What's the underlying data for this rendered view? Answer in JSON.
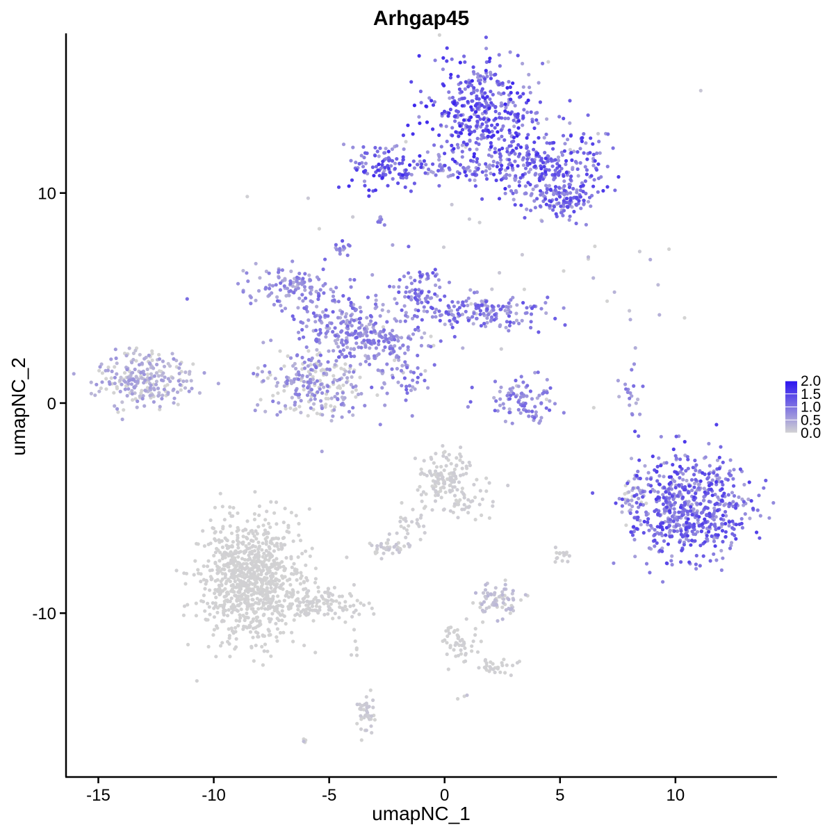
{
  "chart_data": {
    "type": "scatter",
    "title": "Arhgap45",
    "xlabel": "umapNC_1",
    "ylabel": "umapNC_2",
    "xlim": [
      -16.4,
      14.4
    ],
    "ylim": [
      -17.8,
      17.6
    ],
    "x_ticks": [
      -15,
      -10,
      -5,
      0,
      5,
      10
    ],
    "x_tick_labels": [
      "-15",
      "-10",
      "-5",
      "0",
      "5",
      "10"
    ],
    "y_ticks": [
      -10,
      0,
      10
    ],
    "y_tick_labels": [
      "-10",
      "0",
      "10"
    ],
    "grid": false,
    "legend": {
      "position": "right",
      "ticks": [
        2.0,
        1.5,
        1.0,
        0.5,
        0.0
      ],
      "tick_labels": [
        "2.0",
        "1.5",
        "1.0",
        "0.5",
        "0.0"
      ],
      "min": 0.0,
      "max": 2.0
    },
    "colors": {
      "low": "#d3d3d3",
      "high": "#2a12f0"
    },
    "clusters": [
      {
        "cx": 1.8,
        "cy": 13.8,
        "sx": 1.2,
        "sy": 1.4,
        "n": 420,
        "level": 1.2
      },
      {
        "cx": 4.6,
        "cy": 11.2,
        "sx": 1.2,
        "sy": 0.9,
        "n": 260,
        "level": 1.1
      },
      {
        "cx": 5.1,
        "cy": 9.6,
        "sx": 0.6,
        "sy": 0.5,
        "n": 90,
        "level": 1.0
      },
      {
        "cx": -2.6,
        "cy": 11.3,
        "sx": 0.8,
        "sy": 0.6,
        "n": 110,
        "level": 1.2
      },
      {
        "cx": 0.5,
        "cy": 11.1,
        "sx": 1.5,
        "sy": 0.25,
        "n": 80,
        "level": 1.0
      },
      {
        "cx": -2.8,
        "cy": 8.6,
        "sx": 0.15,
        "sy": 0.2,
        "n": 8,
        "level": 1.0
      },
      {
        "cx": -4.4,
        "cy": 7.4,
        "sx": 0.2,
        "sy": 0.2,
        "n": 14,
        "level": 0.9
      },
      {
        "cx": -6.6,
        "cy": 5.4,
        "sx": 1.1,
        "sy": 0.5,
        "n": 110,
        "level": 0.7
      },
      {
        "cx": -1.2,
        "cy": 5.4,
        "sx": 0.6,
        "sy": 0.8,
        "n": 70,
        "level": 0.9
      },
      {
        "cx": 1.5,
        "cy": 4.3,
        "sx": 1.4,
        "sy": 0.5,
        "n": 160,
        "level": 0.9
      },
      {
        "cx": -4.8,
        "cy": 3.8,
        "sx": 0.9,
        "sy": 0.8,
        "n": 130,
        "level": 0.8
      },
      {
        "cx": -3.0,
        "cy": 3.0,
        "sx": 1.2,
        "sy": 0.9,
        "n": 190,
        "level": 0.7
      },
      {
        "cx": -5.6,
        "cy": 0.8,
        "sx": 1.2,
        "sy": 0.8,
        "n": 230,
        "level": 0.6
      },
      {
        "cx": -1.8,
        "cy": 1.2,
        "sx": 0.6,
        "sy": 0.6,
        "n": 30,
        "level": 0.8
      },
      {
        "cx": -13.0,
        "cy": 1.1,
        "sx": 1.1,
        "sy": 0.6,
        "n": 240,
        "level": 0.45
      },
      {
        "cx": 3.4,
        "cy": 0.0,
        "sx": 0.8,
        "sy": 0.6,
        "n": 90,
        "level": 0.8
      },
      {
        "cx": 8.1,
        "cy": 0.5,
        "sx": 0.2,
        "sy": 0.6,
        "n": 20,
        "level": 0.7
      },
      {
        "cx": 10.6,
        "cy": -4.9,
        "sx": 1.3,
        "sy": 1.3,
        "n": 620,
        "level": 1.05
      },
      {
        "cx": 8.2,
        "cy": -4.8,
        "sx": 0.3,
        "sy": 0.7,
        "n": 40,
        "level": 0.6
      },
      {
        "cx": 0.0,
        "cy": -3.5,
        "sx": 0.6,
        "sy": 0.6,
        "n": 130,
        "level": 0.05
      },
      {
        "cx": 1.0,
        "cy": -4.8,
        "sx": 0.5,
        "sy": 0.4,
        "n": 30,
        "level": 0.05
      },
      {
        "cx": -1.4,
        "cy": -5.6,
        "sx": 0.4,
        "sy": 0.5,
        "n": 25,
        "level": 0.05
      },
      {
        "cx": -2.5,
        "cy": -6.9,
        "sx": 0.4,
        "sy": 0.2,
        "n": 40,
        "level": 0.1
      },
      {
        "cx": -8.4,
        "cy": -8.4,
        "sx": 1.1,
        "sy": 1.4,
        "n": 900,
        "level": 0.02
      },
      {
        "cx": -5.2,
        "cy": -9.6,
        "sx": 0.9,
        "sy": 0.4,
        "n": 120,
        "level": 0.03
      },
      {
        "cx": 2.4,
        "cy": -9.4,
        "sx": 0.5,
        "sy": 0.35,
        "n": 70,
        "level": 0.2
      },
      {
        "cx": 5.0,
        "cy": -7.2,
        "sx": 0.2,
        "sy": 0.2,
        "n": 15,
        "level": 0.05
      },
      {
        "cx": 0.6,
        "cy": -11.4,
        "sx": 0.5,
        "sy": 0.5,
        "n": 50,
        "level": 0.03
      },
      {
        "cx": 2.3,
        "cy": -12.6,
        "sx": 0.4,
        "sy": 0.2,
        "n": 30,
        "level": 0.03
      },
      {
        "cx": -3.4,
        "cy": -14.8,
        "sx": 0.2,
        "sy": 0.5,
        "n": 40,
        "level": 0.1
      },
      {
        "cx": -3.9,
        "cy": -11.7,
        "sx": 0.1,
        "sy": 0.3,
        "n": 6,
        "level": 0.03
      },
      {
        "cx": 7.5,
        "cy": 5.6,
        "sx": 1.6,
        "sy": 1.2,
        "n": 10,
        "level": 0.3
      },
      {
        "cx": 0.7,
        "cy": -14.0,
        "sx": 0.1,
        "sy": 0.1,
        "n": 3,
        "level": 0.4
      },
      {
        "cx": -6.0,
        "cy": -16.0,
        "sx": 0.1,
        "sy": 0.1,
        "n": 4,
        "level": 0.4
      },
      {
        "cx": 1.6,
        "cy": 7.8,
        "sx": 4.5,
        "sy": 5.0,
        "n": 40,
        "level": 0.1
      }
    ]
  }
}
